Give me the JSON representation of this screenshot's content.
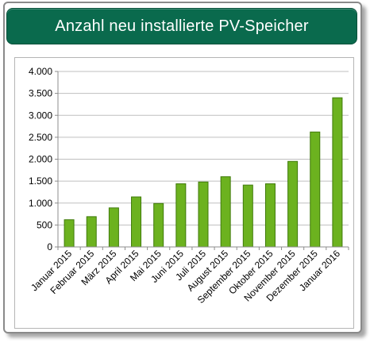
{
  "title": "Anzahl neu installierte PV-Speicher",
  "colors": {
    "header": "#0a6a4d",
    "bar": "#6cb21f",
    "bar_edge": "#3f7a0a"
  },
  "chart_data": {
    "type": "bar",
    "title": "Anzahl neu installierte PV-Speicher",
    "xlabel": "",
    "ylabel": "",
    "categories": [
      "Januar 2015",
      "Februar 2015",
      "März 2015",
      "April 2015",
      "Mai 2015",
      "Juni 2015",
      "Juli 2015",
      "August 2015",
      "September 2015",
      "Oktober 2015",
      "November 2015",
      "Dezember 2015",
      "Januar 2016"
    ],
    "values": [
      620,
      690,
      890,
      1140,
      990,
      1440,
      1480,
      1600,
      1410,
      1440,
      1950,
      2620,
      3400
    ],
    "ylim": [
      0,
      4000
    ],
    "yticks": [
      0,
      500,
      1000,
      1500,
      2000,
      2500,
      3000,
      3500,
      4000
    ],
    "ytick_labels": [
      "0",
      "500",
      "1.000",
      "1.500",
      "2.000",
      "2.500",
      "3.000",
      "3.500",
      "4.000"
    ],
    "grid": true,
    "legend": "none"
  }
}
